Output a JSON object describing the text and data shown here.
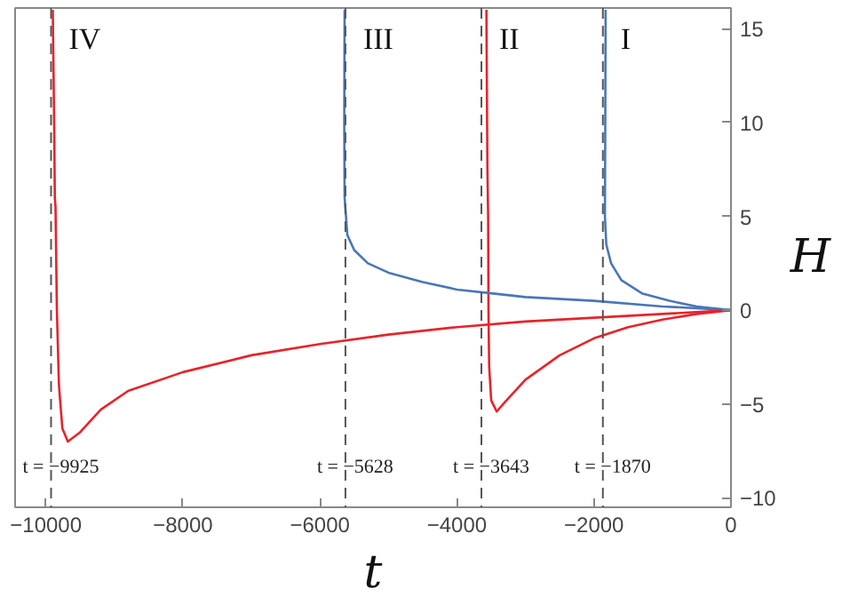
{
  "chart_data": {
    "type": "line",
    "xlabel": "t",
    "ylabel": "H",
    "xlim": [
      -10450,
      0
    ],
    "ylim": [
      -10.5,
      16.1
    ],
    "xticks": [
      -10000,
      -8000,
      -6000,
      -4000,
      -2000,
      0
    ],
    "yticks": [
      -10,
      -5,
      0,
      5,
      10,
      15
    ],
    "grid": false,
    "series": [
      {
        "color": "#4a76b8",
        "x": [
          -1830,
          -1835,
          -1840,
          -1820,
          -1750,
          -1600,
          -1300,
          -900,
          -500,
          0
        ],
        "values": [
          16,
          10,
          5,
          3.5,
          2.5,
          1.6,
          0.9,
          0.5,
          0.2,
          0
        ]
      },
      {
        "color": "#e8232a",
        "x": [
          -3570,
          -3560,
          -3555,
          -3545,
          -3540,
          -3530,
          -3500,
          -3420,
          -3300,
          -3000,
          -2500,
          -2000,
          -1500,
          -1000,
          -500,
          0
        ],
        "values": [
          16,
          10,
          7.5,
          5,
          0,
          -3,
          -4.8,
          -5.4,
          -4.9,
          -3.7,
          -2.4,
          -1.5,
          -0.9,
          -0.5,
          -0.2,
          0
        ]
      },
      {
        "color": "#4a76b8",
        "x": [
          -5640,
          -5645,
          -5640,
          -5600,
          -5500,
          -5300,
          -5000,
          -4500,
          -4000,
          -3500,
          -3000,
          -2000,
          -1000,
          0
        ],
        "values": [
          16,
          10,
          6,
          4,
          3.2,
          2.5,
          2.0,
          1.5,
          1.1,
          0.9,
          0.7,
          0.5,
          0.2,
          0
        ]
      },
      {
        "color": "#e8232a",
        "x": [
          -9900,
          -9880,
          -9870,
          -9860,
          -9840,
          -9810,
          -9760,
          -9680,
          -9500,
          -9200,
          -8800,
          -8000,
          -7000,
          -6000,
          -5000,
          -4000,
          -3000,
          -2000,
          -1000,
          0
        ],
        "values": [
          16,
          10,
          6,
          5.5,
          0,
          -4,
          -6.3,
          -7.0,
          -6.5,
          -5.3,
          -4.3,
          -3.3,
          -2.4,
          -1.8,
          -1.3,
          -0.9,
          -0.6,
          -0.4,
          -0.2,
          0
        ]
      }
    ],
    "ref_lines": [
      {
        "axis": "x",
        "value": -9925,
        "label": "t = −9925",
        "color": "#555555",
        "line_style": "dashed"
      },
      {
        "axis": "x",
        "value": -5628,
        "label": "t = −5628",
        "color": "#555555",
        "line_style": "dashed"
      },
      {
        "axis": "x",
        "value": -3643,
        "label": "t = −3643",
        "color": "#555555",
        "line_style": "dashed"
      },
      {
        "axis": "x",
        "value": -1870,
        "label": "t = −1870",
        "color": "#555555",
        "line_style": "dashed"
      }
    ],
    "annotations": [
      "IV",
      "III",
      "II",
      "I"
    ]
  }
}
